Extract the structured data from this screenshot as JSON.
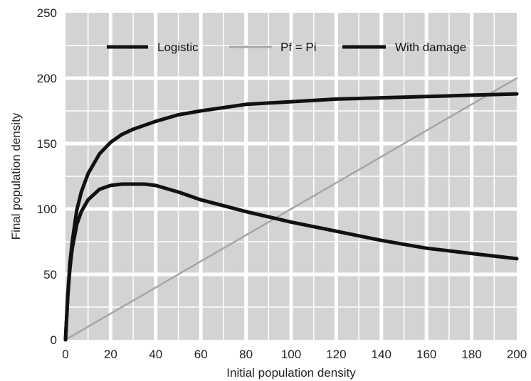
{
  "chart_data": {
    "type": "line",
    "title": "",
    "xlabel": "Initial population density",
    "ylabel": "Final population density",
    "xlim": [
      0,
      200
    ],
    "ylim": [
      0,
      250
    ],
    "xticks": [
      0,
      20,
      40,
      60,
      80,
      100,
      120,
      140,
      160,
      180,
      200
    ],
    "yticks": [
      0,
      50,
      100,
      150,
      200,
      250
    ],
    "grid": true,
    "legend_position": "top",
    "colors": {
      "background": "#d3d3d3",
      "grid": "#ffffff",
      "logistic": "#111111",
      "pf_eq_pi": "#a6a6a6",
      "with_damage": "#111111"
    },
    "series": [
      {
        "name": "Logistic",
        "x": [
          0,
          1,
          2,
          3,
          5,
          7,
          10,
          15,
          20,
          25,
          30,
          40,
          50,
          60,
          80,
          100,
          120,
          140,
          160,
          180,
          200
        ],
        "y": [
          0,
          34,
          59,
          75,
          99,
          113,
          127,
          142,
          151,
          157,
          161,
          167,
          172,
          175,
          180,
          182,
          184,
          185,
          186,
          187,
          188
        ]
      },
      {
        "name": "Pf = Pi",
        "x": [
          0,
          200
        ],
        "y": [
          0,
          200
        ]
      },
      {
        "name": "With damage",
        "x": [
          0,
          1,
          2,
          3,
          5,
          7,
          10,
          15,
          20,
          25,
          30,
          35,
          40,
          50,
          60,
          80,
          100,
          120,
          140,
          160,
          180,
          200
        ],
        "y": [
          0,
          33,
          55,
          70,
          88,
          98,
          107,
          115,
          118,
          119,
          119,
          119,
          118,
          113,
          107,
          98,
          90,
          83,
          76,
          70,
          66,
          62
        ]
      }
    ]
  }
}
